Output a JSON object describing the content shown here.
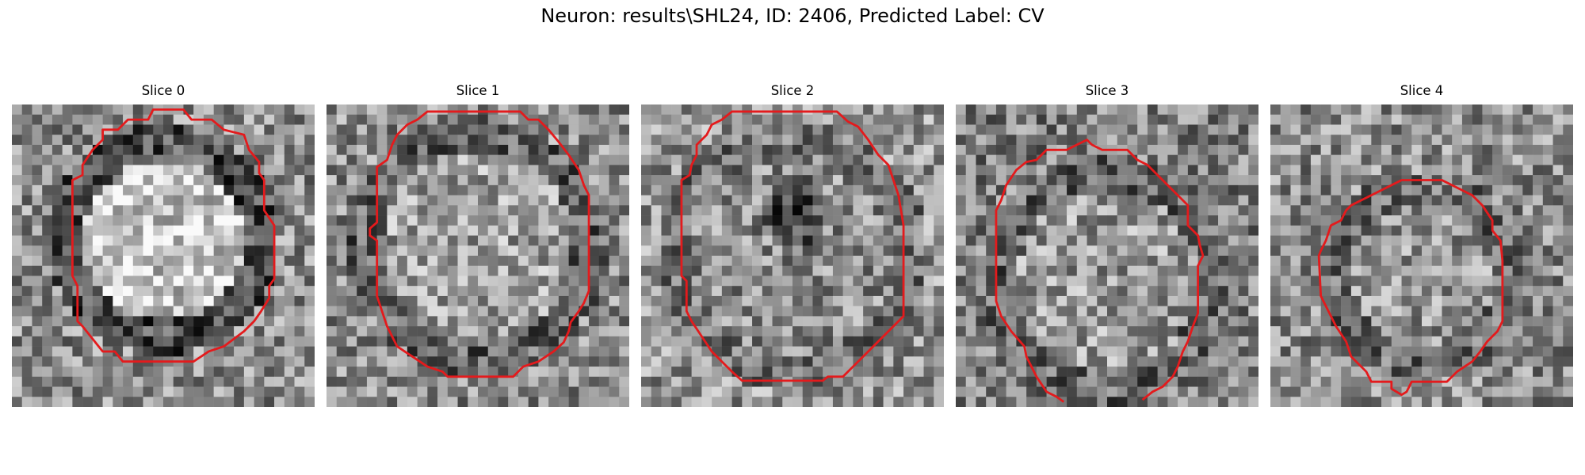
{
  "figure": {
    "title": "Neuron: results\\SHL24, ID: 2406, Predicted Label: CV"
  },
  "slices": [
    {
      "label": "Slice 0"
    },
    {
      "label": "Slice 1"
    },
    {
      "label": "Slice 2"
    },
    {
      "label": "Slice 3"
    },
    {
      "label": "Slice 4"
    }
  ],
  "colors": {
    "contour": "#e41a1c",
    "colormap": "grayscale"
  }
}
